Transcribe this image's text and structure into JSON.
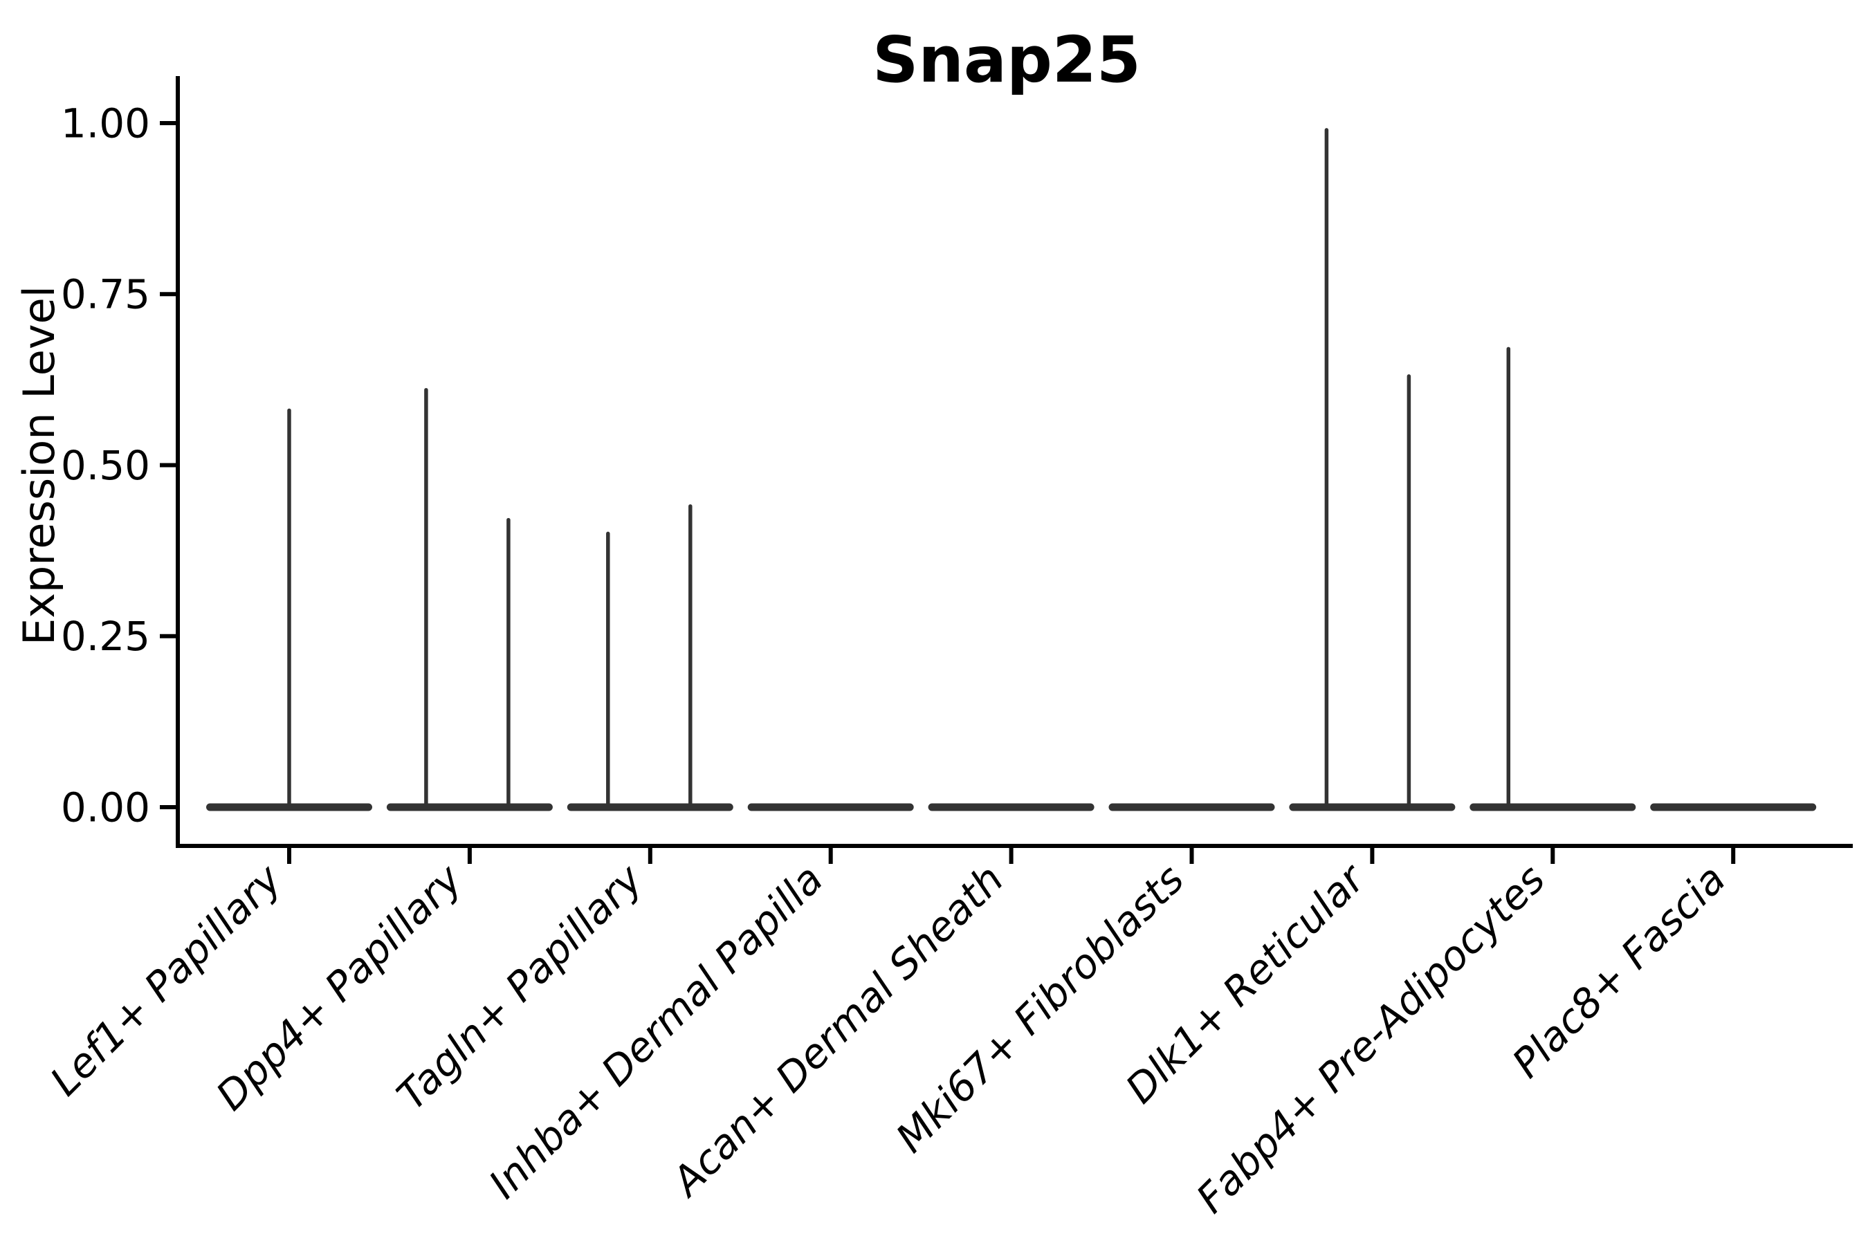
{
  "page": {
    "background": "#ffffff"
  },
  "chart_data": {
    "type": "violin",
    "title": "Snap25",
    "xlabel": "",
    "ylabel": "Expression Level",
    "ylim": [
      0,
      1.0
    ],
    "grid": false,
    "legend": null,
    "y_ticks": [
      {
        "label": "0.00",
        "value": 0.0
      },
      {
        "label": "0.25",
        "value": 0.25
      },
      {
        "label": "0.50",
        "value": 0.5
      },
      {
        "label": "0.75",
        "value": 0.75
      },
      {
        "label": "1.00",
        "value": 1.0
      }
    ],
    "categories": [
      "Lef1+ Papillary",
      "Dpp4+ Papillary",
      "Tagln+ Papillary",
      "Inhba+ Dermal Papilla",
      "Acan+ Dermal Sheath",
      "Mki67+ Fibroblasts",
      "Dlk1+ Reticular",
      "Fabp4+ Pre-Adipocytes",
      "Plac8+ Fascia"
    ],
    "violins": [
      {
        "category": "Lef1+ Papillary",
        "base_value": 0,
        "spikes": [
          {
            "x_offset": 0,
            "value": 0.58
          }
        ]
      },
      {
        "category": "Dpp4+ Papillary",
        "base_value": 0,
        "spikes": [
          {
            "x_offset": -63,
            "value": 0.61
          },
          {
            "x_offset": 56,
            "value": 0.42
          }
        ]
      },
      {
        "category": "Tagln+ Papillary",
        "base_value": 0,
        "spikes": [
          {
            "x_offset": -61,
            "value": 0.4
          },
          {
            "x_offset": 58,
            "value": 0.44
          }
        ]
      },
      {
        "category": "Inhba+ Dermal Papilla",
        "base_value": 0,
        "spikes": []
      },
      {
        "category": "Acan+ Dermal Sheath",
        "base_value": 0,
        "spikes": []
      },
      {
        "category": "Mki67+ Fibroblasts",
        "base_value": 0,
        "spikes": []
      },
      {
        "category": "Dlk1+ Reticular",
        "base_value": 0,
        "spikes": [
          {
            "x_offset": -66,
            "value": 0.99
          },
          {
            "x_offset": 53,
            "value": 0.63
          }
        ]
      },
      {
        "category": "Fabp4+ Pre-Adipocytes",
        "base_value": 0,
        "spikes": [
          {
            "x_offset": -64,
            "value": 0.67
          }
        ]
      },
      {
        "category": "Plac8+ Fascia",
        "base_value": 0,
        "spikes": []
      }
    ],
    "colors": {
      "violin": "#333333",
      "axis": "#000000",
      "text": "#000000",
      "background": "#ffffff"
    }
  }
}
